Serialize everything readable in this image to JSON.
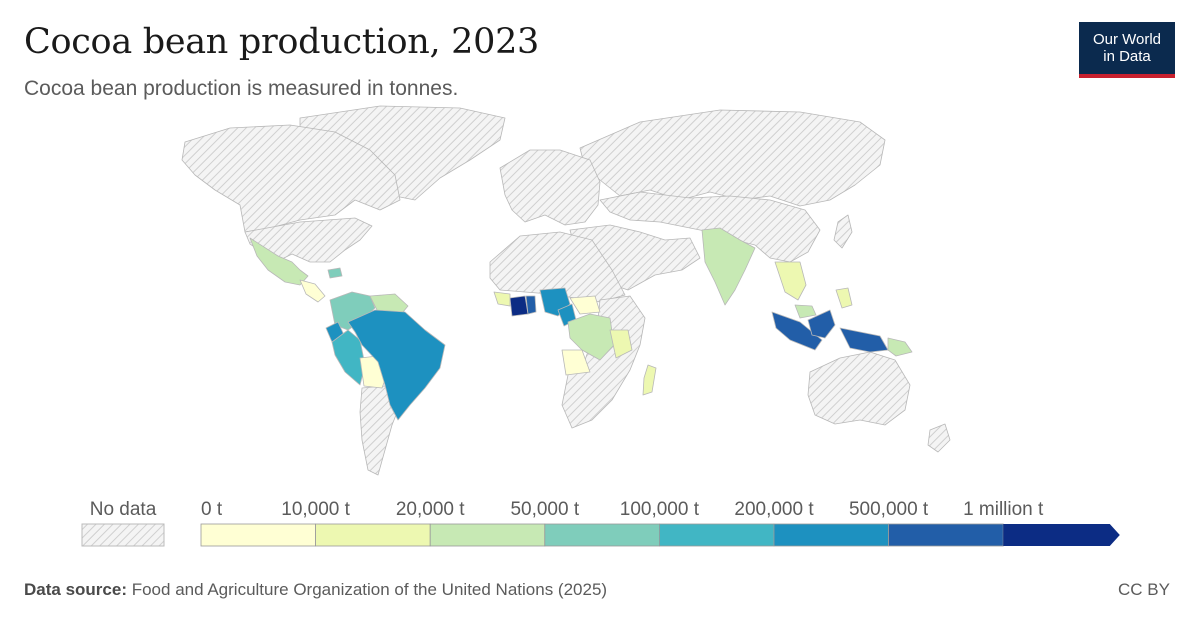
{
  "header": {
    "title": "Cocoa bean production, 2023",
    "subtitle": "Cocoa bean production is measured in tonnes."
  },
  "logo": {
    "line1": "Our World",
    "line2": "in Data"
  },
  "legend": {
    "no_data_label": "No data",
    "bins": [
      {
        "label": "0 t",
        "color": "#ffffd4"
      },
      {
        "label": "10,000 t",
        "color": "#edf8b1"
      },
      {
        "label": "20,000 t",
        "color": "#c7e9b4"
      },
      {
        "label": "50,000 t",
        "color": "#7fcdbb"
      },
      {
        "label": "100,000 t",
        "color": "#41b6c4"
      },
      {
        "label": "200,000 t",
        "color": "#1d91c0"
      },
      {
        "label": "500,000 t",
        "color": "#225ea8"
      },
      {
        "label": "1 million t",
        "color": "#0c2c84"
      }
    ]
  },
  "colors": {
    "no_data": "#e9e9e9",
    "border": "#b5b5b5"
  },
  "footer": {
    "source_label": "Data source:",
    "source_text": "Food and Agriculture Organization of the United Nations (2025)",
    "license": "CC BY"
  }
}
